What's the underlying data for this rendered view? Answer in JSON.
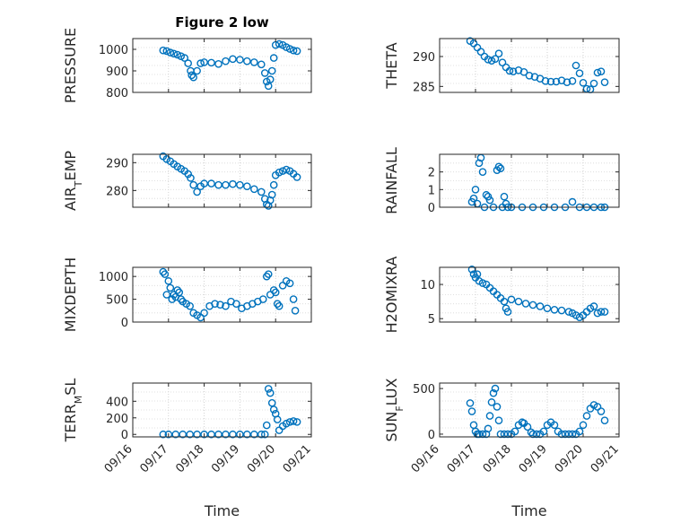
{
  "figure": {
    "title": "Figure 2 low",
    "marker_color": "#0072BD",
    "grid": "dotted",
    "xlabel": "Time",
    "xticks": [
      "09/16",
      "09/17",
      "09/18",
      "09/19",
      "09/20",
      "09/21"
    ]
  },
  "chart_data": [
    {
      "type": "scatter",
      "ylabel": "PRESSURE",
      "title": "Figure 2 low",
      "ylim": [
        800,
        1050
      ],
      "yticks": [
        800,
        900,
        1000
      ],
      "xticks": [
        "09/16",
        "09/17",
        "09/18",
        "09/19",
        "09/20",
        "09/21"
      ],
      "xlabel": "",
      "x": [
        16.85,
        16.95,
        17.05,
        17.15,
        17.25,
        17.35,
        17.45,
        17.55,
        17.62,
        17.65,
        17.7,
        17.8,
        17.9,
        18.0,
        18.2,
        18.4,
        18.6,
        18.8,
        19.0,
        19.2,
        19.4,
        19.6,
        19.7,
        19.75,
        19.8,
        19.85,
        19.9,
        19.95,
        20.0,
        20.1,
        20.2,
        20.3,
        20.4,
        20.5,
        20.6
      ],
      "values": [
        995,
        992,
        985,
        980,
        975,
        968,
        960,
        935,
        900,
        880,
        870,
        900,
        935,
        940,
        938,
        932,
        945,
        955,
        952,
        945,
        940,
        930,
        890,
        850,
        830,
        860,
        900,
        960,
        1020,
        1025,
        1020,
        1010,
        1002,
        995,
        992
      ]
    },
    {
      "type": "scatter",
      "ylabel": "THETA",
      "ylim": [
        284,
        293
      ],
      "yticks": [
        285,
        290
      ],
      "xticks": [
        "09/16",
        "09/17",
        "09/18",
        "09/19",
        "09/20",
        "09/21"
      ],
      "xlabel": "",
      "x": [
        16.85,
        16.95,
        17.05,
        17.15,
        17.25,
        17.35,
        17.45,
        17.55,
        17.65,
        17.75,
        17.85,
        17.95,
        18.05,
        18.2,
        18.35,
        18.5,
        18.65,
        18.8,
        18.95,
        19.1,
        19.25,
        19.4,
        19.55,
        19.7,
        19.8,
        19.9,
        20.0,
        20.1,
        20.2,
        20.3,
        20.4,
        20.5,
        20.6
      ],
      "values": [
        292.6,
        292.2,
        291.5,
        290.8,
        290.0,
        289.5,
        289.3,
        289.6,
        290.5,
        289.0,
        288.2,
        287.6,
        287.5,
        287.7,
        287.4,
        286.8,
        286.6,
        286.3,
        285.9,
        285.8,
        285.8,
        286.0,
        285.7,
        285.9,
        288.5,
        287.2,
        285.6,
        284.6,
        284.5,
        285.5,
        287.3,
        287.5,
        285.7
      ]
    },
    {
      "type": "scatter",
      "ylabel": "AIR_TEMP",
      "ylim": [
        274,
        293
      ],
      "yticks": [
        280,
        290
      ],
      "xticks": [
        "09/16",
        "09/17",
        "09/18",
        "09/19",
        "09/20",
        "09/21"
      ],
      "xlabel": "",
      "x": [
        16.85,
        16.95,
        17.05,
        17.15,
        17.25,
        17.35,
        17.45,
        17.55,
        17.62,
        17.7,
        17.8,
        17.9,
        18.0,
        18.2,
        18.4,
        18.6,
        18.8,
        19.0,
        19.2,
        19.4,
        19.6,
        19.7,
        19.75,
        19.8,
        19.85,
        19.9,
        19.95,
        20.0,
        20.1,
        20.2,
        20.3,
        20.4,
        20.5,
        20.6
      ],
      "values": [
        292.3,
        291.3,
        290.5,
        289.5,
        288.6,
        287.8,
        287.0,
        285.9,
        284.5,
        282.0,
        279.5,
        281.5,
        282.5,
        282.5,
        282.0,
        282.0,
        282.3,
        282.0,
        281.5,
        280.5,
        279.5,
        277.0,
        275.0,
        274.5,
        276.5,
        278.5,
        282.0,
        285.5,
        286.5,
        287.0,
        287.5,
        287.0,
        286.0,
        284.8
      ]
    },
    {
      "type": "scatter",
      "ylabel": "RAINFALL",
      "ylim": [
        0,
        3
      ],
      "yticks": [
        0,
        1,
        2
      ],
      "xticks": [
        "09/16",
        "09/17",
        "09/18",
        "09/19",
        "09/20",
        "09/21"
      ],
      "xlabel": "",
      "x": [
        16.9,
        16.95,
        17.0,
        17.05,
        17.1,
        17.15,
        17.2,
        17.25,
        17.3,
        17.35,
        17.4,
        17.5,
        17.6,
        17.65,
        17.7,
        17.75,
        17.8,
        17.85,
        17.9,
        18.0,
        18.3,
        18.6,
        18.9,
        19.2,
        19.5,
        19.7,
        19.9,
        20.1,
        20.3,
        20.5,
        20.6
      ],
      "values": [
        0.3,
        0.5,
        1.0,
        0.2,
        2.5,
        2.8,
        2.0,
        0.0,
        0.7,
        0.6,
        0.4,
        0.0,
        2.1,
        2.3,
        2.2,
        0.0,
        0.6,
        0.2,
        0.0,
        0.0,
        0.0,
        0.0,
        0.0,
        0.0,
        0.0,
        0.3,
        0.0,
        0.0,
        0.0,
        0.0,
        0.0
      ]
    },
    {
      "type": "scatter",
      "ylabel": "MIXDEPTH",
      "ylim": [
        0,
        1200
      ],
      "yticks": [
        0,
        500,
        1000
      ],
      "xticks": [
        "09/16",
        "09/17",
        "09/18",
        "09/19",
        "09/20",
        "09/21"
      ],
      "xlabel": "",
      "x": [
        16.85,
        16.9,
        16.95,
        17.0,
        17.05,
        17.1,
        17.15,
        17.2,
        17.25,
        17.3,
        17.35,
        17.4,
        17.5,
        17.6,
        17.7,
        17.8,
        17.9,
        18.0,
        18.15,
        18.3,
        18.45,
        18.6,
        18.75,
        18.9,
        19.05,
        19.2,
        19.35,
        19.5,
        19.65,
        19.75,
        19.8,
        19.85,
        19.95,
        20.0,
        20.05,
        20.1,
        20.2,
        20.3,
        20.4,
        20.5,
        20.55
      ],
      "values": [
        1100,
        1050,
        600,
        900,
        750,
        500,
        600,
        550,
        700,
        650,
        500,
        450,
        400,
        350,
        200,
        150,
        100,
        200,
        350,
        400,
        380,
        350,
        450,
        400,
        300,
        350,
        400,
        450,
        500,
        1000,
        1050,
        600,
        700,
        650,
        400,
        350,
        800,
        900,
        850,
        500,
        250
      ]
    },
    {
      "type": "scatter",
      "ylabel": "H2OMIXRA",
      "ylim": [
        4.5,
        12.5
      ],
      "yticks": [
        5,
        10
      ],
      "xticks": [
        "09/16",
        "09/17",
        "09/18",
        "09/19",
        "09/20",
        "09/21"
      ],
      "xlabel": "",
      "x": [
        16.9,
        16.95,
        17.0,
        17.05,
        17.1,
        17.2,
        17.3,
        17.4,
        17.5,
        17.6,
        17.7,
        17.8,
        17.85,
        17.9,
        18.0,
        18.2,
        18.4,
        18.6,
        18.8,
        19.0,
        19.2,
        19.4,
        19.6,
        19.7,
        19.8,
        19.9,
        20.0,
        20.1,
        20.2,
        20.3,
        20.4,
        20.5,
        20.6
      ],
      "values": [
        12.2,
        11.5,
        11.0,
        11.5,
        10.5,
        10.2,
        10.0,
        9.5,
        9.0,
        8.5,
        8.0,
        7.5,
        6.5,
        6.0,
        7.8,
        7.5,
        7.2,
        7.0,
        6.8,
        6.5,
        6.3,
        6.2,
        6.0,
        5.8,
        5.5,
        5.2,
        5.5,
        6.0,
        6.5,
        6.8,
        5.8,
        6.0,
        6.0
      ]
    },
    {
      "type": "scatter",
      "ylabel": "TERR_MSL",
      "ylim": [
        -30,
        620
      ],
      "yticks": [
        0,
        200,
        400
      ],
      "xticks": [
        "09/16",
        "09/17",
        "09/18",
        "09/19",
        "09/20",
        "09/21"
      ],
      "xlabel": "Time",
      "x": [
        16.85,
        17.0,
        17.2,
        17.4,
        17.6,
        17.8,
        18.0,
        18.2,
        18.4,
        18.6,
        18.8,
        19.0,
        19.2,
        19.4,
        19.6,
        19.7,
        19.75,
        19.8,
        19.85,
        19.9,
        19.95,
        20.0,
        20.05,
        20.1,
        20.2,
        20.3,
        20.4,
        20.5,
        20.6
      ],
      "values": [
        0,
        0,
        0,
        0,
        0,
        0,
        0,
        0,
        0,
        0,
        0,
        0,
        0,
        0,
        0,
        0,
        110,
        550,
        500,
        380,
        300,
        250,
        180,
        50,
        100,
        130,
        150,
        160,
        150
      ]
    },
    {
      "type": "scatter",
      "ylabel": "SUN_FLUX",
      "ylim": [
        -30,
        560
      ],
      "yticks": [
        0,
        500
      ],
      "xticks": [
        "09/16",
        "09/17",
        "09/18",
        "09/19",
        "09/20",
        "09/21"
      ],
      "xlabel": "Time",
      "x": [
        16.85,
        16.9,
        16.95,
        17.0,
        17.05,
        17.1,
        17.2,
        17.3,
        17.35,
        17.4,
        17.45,
        17.5,
        17.55,
        17.6,
        17.65,
        17.7,
        17.8,
        17.9,
        18.0,
        18.1,
        18.2,
        18.3,
        18.35,
        18.45,
        18.55,
        18.6,
        18.7,
        18.8,
        18.9,
        19.0,
        19.1,
        19.2,
        19.3,
        19.4,
        19.5,
        19.6,
        19.7,
        19.8,
        19.9,
        20.0,
        20.1,
        20.2,
        20.3,
        20.4,
        20.5,
        20.6
      ],
      "values": [
        340,
        250,
        100,
        30,
        0,
        0,
        0,
        0,
        60,
        200,
        350,
        450,
        500,
        300,
        150,
        0,
        0,
        0,
        0,
        30,
        100,
        130,
        120,
        80,
        20,
        0,
        0,
        0,
        30,
        100,
        130,
        100,
        30,
        0,
        0,
        0,
        0,
        0,
        30,
        100,
        200,
        280,
        320,
        300,
        250,
        150
      ]
    }
  ]
}
